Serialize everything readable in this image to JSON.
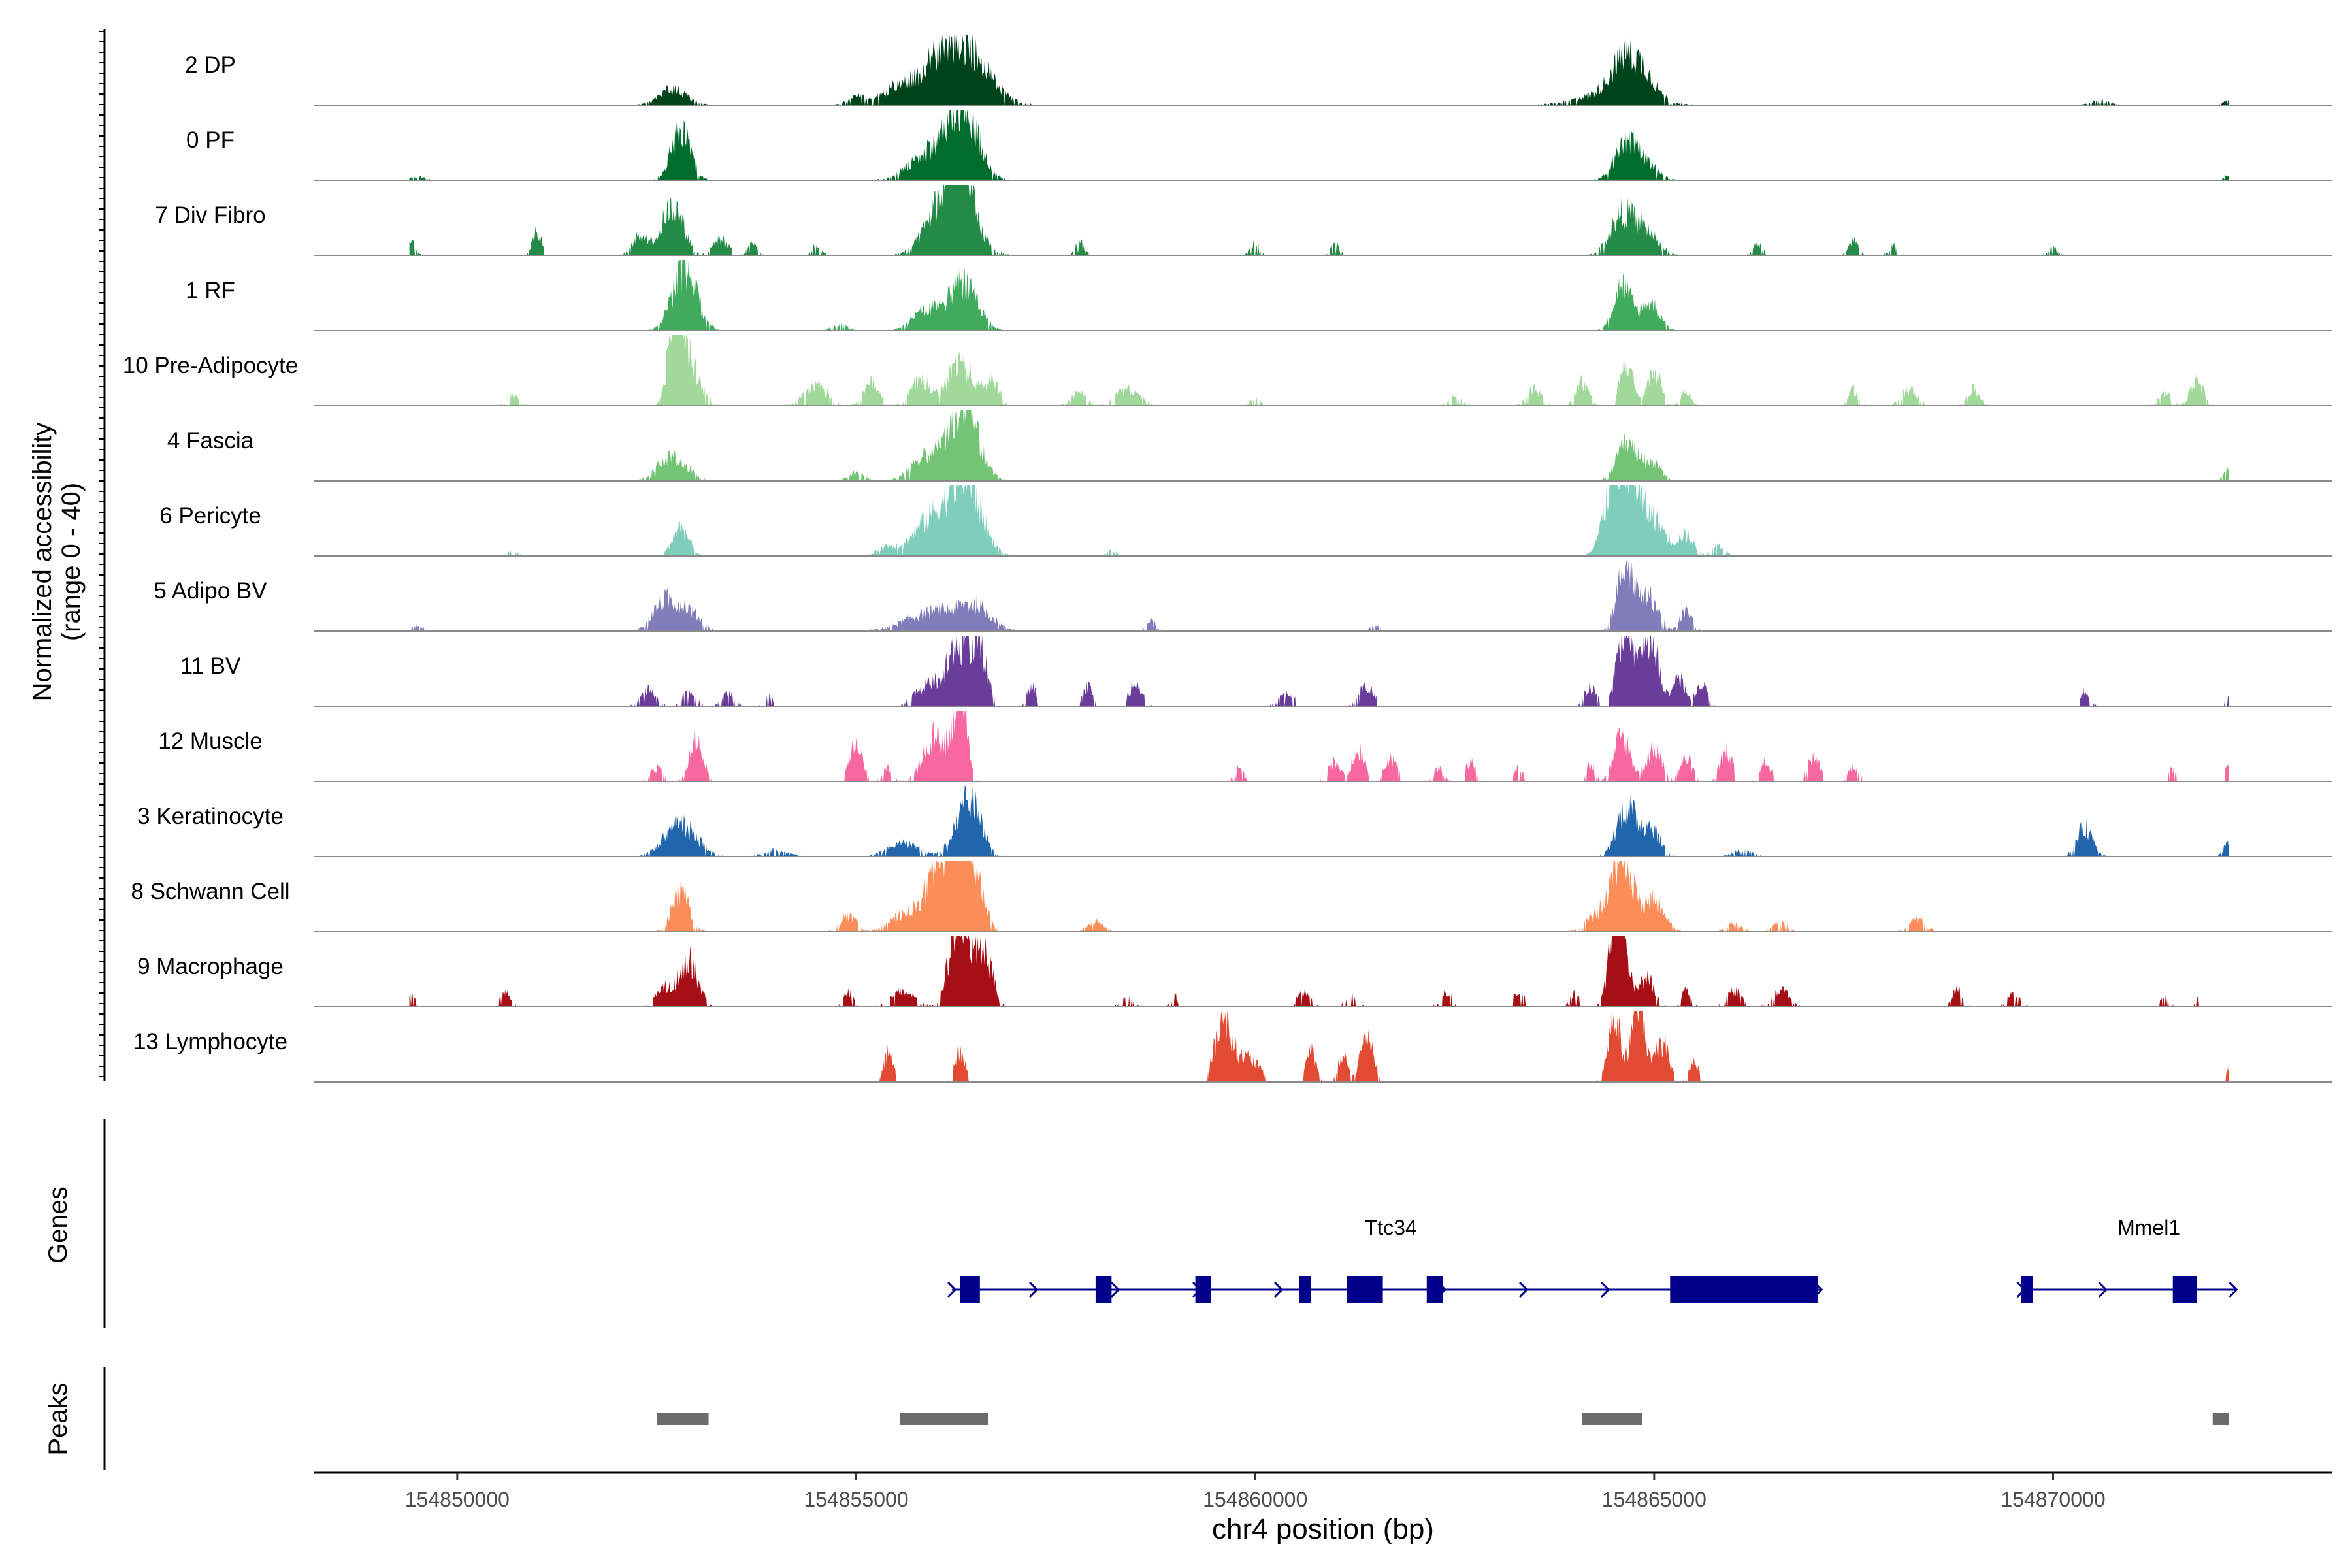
{
  "chart_data": {
    "type": "area",
    "title": "",
    "ylabel_line1": "Normalized accessibility",
    "ylabel_line2": "(range 0 - 40)",
    "y_range": [
      0,
      40
    ],
    "xlabel": "chr4 position (bp)",
    "xlim": [
      154848200,
      154873500
    ],
    "x_ticks": [
      154850000,
      154855000,
      154860000,
      154865000,
      154870000
    ],
    "x_tick_labels": [
      "154850000",
      "154855000",
      "154860000",
      "154865000",
      "154870000"
    ],
    "track_labels": {
      "genes": "Genes",
      "peaks": "Peaks"
    },
    "tracks": [
      {
        "name": "2 DP",
        "color": "#00441b",
        "sparse": 0.3,
        "peaks": [
          [
            154852700,
            10,
            180
          ],
          [
            154855000,
            5,
            120
          ],
          [
            154856300,
            30,
            300
          ],
          [
            154856100,
            14,
            400
          ],
          [
            154855500,
            7,
            200
          ],
          [
            154864650,
            23,
            170
          ],
          [
            154864500,
            8,
            400
          ],
          [
            154864900,
            10,
            150
          ],
          [
            154870600,
            3,
            120
          ],
          [
            154872200,
            3,
            60
          ]
        ]
      },
      {
        "name": "0 PF",
        "color": "#006d2c",
        "sparse": 0.3,
        "peaks": [
          [
            154852800,
            32,
            120
          ],
          [
            154856350,
            38,
            180
          ],
          [
            154856100,
            15,
            300
          ],
          [
            154855800,
            6,
            200
          ],
          [
            154864650,
            22,
            140
          ],
          [
            154864900,
            9,
            150
          ],
          [
            154849500,
            2,
            100
          ],
          [
            154872200,
            3,
            60
          ]
        ]
      },
      {
        "name": "7 Div Fibro",
        "color": "#238b45",
        "sparse": 0.5,
        "peaks": [
          [
            154856300,
            90,
            80
          ],
          [
            154856200,
            45,
            250
          ],
          [
            154852700,
            30,
            140
          ],
          [
            154852300,
            12,
            100
          ],
          [
            154853300,
            10,
            100
          ],
          [
            154849400,
            10,
            60
          ],
          [
            154851000,
            14,
            60
          ],
          [
            154853700,
            8,
            60
          ],
          [
            154854500,
            6,
            60
          ],
          [
            154857800,
            8,
            60
          ],
          [
            154860000,
            8,
            60
          ],
          [
            154861000,
            7,
            60
          ],
          [
            154864600,
            25,
            150
          ],
          [
            154864900,
            14,
            150
          ],
          [
            154866300,
            8,
            60
          ],
          [
            154867500,
            10,
            60
          ],
          [
            154868000,
            6,
            60
          ],
          [
            154870000,
            5,
            60
          ]
        ]
      },
      {
        "name": "1 RF",
        "color": "#41ab5d",
        "sparse": 0.3,
        "peaks": [
          [
            154852850,
            38,
            150
          ],
          [
            154856350,
            30,
            170
          ],
          [
            154855900,
            14,
            180
          ],
          [
            154854800,
            4,
            100
          ],
          [
            154864600,
            28,
            110
          ],
          [
            154864950,
            17,
            120
          ]
        ]
      },
      {
        "name": "10 Pre-Adipocyte",
        "color": "#a1d99b",
        "sparse": 0.6,
        "peaks": [
          [
            154852750,
            68,
            90
          ],
          [
            154852950,
            20,
            120
          ],
          [
            154850700,
            6,
            80
          ],
          [
            154854500,
            12,
            150
          ],
          [
            154855200,
            14,
            100
          ],
          [
            154855800,
            16,
            120
          ],
          [
            154856300,
            28,
            150
          ],
          [
            154856700,
            15,
            100
          ],
          [
            154857800,
            8,
            100
          ],
          [
            154858400,
            10,
            150
          ],
          [
            154860000,
            5,
            60
          ],
          [
            154862500,
            5,
            100
          ],
          [
            154863500,
            10,
            100
          ],
          [
            154864100,
            15,
            80
          ],
          [
            154864650,
            28,
            80
          ],
          [
            154865000,
            22,
            80
          ],
          [
            154865400,
            10,
            60
          ],
          [
            154867500,
            10,
            60
          ],
          [
            154868200,
            10,
            100
          ],
          [
            154869000,
            10,
            80
          ],
          [
            154871400,
            8,
            80
          ],
          [
            154871800,
            17,
            80
          ]
        ]
      },
      {
        "name": "4 Fascia",
        "color": "#74c476",
        "sparse": 0.3,
        "peaks": [
          [
            154852700,
            15,
            180
          ],
          [
            154856350,
            45,
            180
          ],
          [
            154855900,
            15,
            200
          ],
          [
            154855000,
            5,
            100
          ],
          [
            154864650,
            22,
            120
          ],
          [
            154864950,
            12,
            120
          ],
          [
            154872200,
            8,
            60
          ]
        ]
      },
      {
        "name": "6 Pericyte",
        "color": "#7fcdbb",
        "sparse": 0.4,
        "peaks": [
          [
            154852800,
            18,
            100
          ],
          [
            154856350,
            50,
            200
          ],
          [
            154855900,
            20,
            200
          ],
          [
            154855400,
            6,
            120
          ],
          [
            154864650,
            58,
            140
          ],
          [
            154864450,
            25,
            120
          ],
          [
            154865000,
            22,
            150
          ],
          [
            154865400,
            12,
            100
          ],
          [
            154865800,
            7,
            80
          ],
          [
            154850700,
            4,
            60
          ],
          [
            154858200,
            4,
            60
          ]
        ]
      },
      {
        "name": "5 Adipo BV",
        "color": "#807dba",
        "sparse": 0.4,
        "peaks": [
          [
            154852600,
            18,
            150
          ],
          [
            154852900,
            12,
            150
          ],
          [
            154856000,
            12,
            350
          ],
          [
            154856500,
            12,
            200
          ],
          [
            154849500,
            3,
            80
          ],
          [
            154864650,
            42,
            110
          ],
          [
            154864950,
            20,
            110
          ],
          [
            154865400,
            12,
            80
          ],
          [
            154858700,
            7,
            60
          ],
          [
            154861500,
            5,
            60
          ]
        ]
      },
      {
        "name": "11 BV",
        "color": "#6a3d9a",
        "sparse": 0.8,
        "peaks": [
          [
            154852400,
            10,
            100
          ],
          [
            154852900,
            8,
            100
          ],
          [
            154853400,
            8,
            80
          ],
          [
            154853900,
            6,
            60
          ],
          [
            154855900,
            14,
            150
          ],
          [
            154856300,
            40,
            150
          ],
          [
            154856550,
            28,
            100
          ],
          [
            154857200,
            12,
            60
          ],
          [
            154857900,
            12,
            60
          ],
          [
            154858500,
            14,
            80
          ],
          [
            154860400,
            8,
            100
          ],
          [
            154861400,
            12,
            100
          ],
          [
            154864200,
            12,
            80
          ],
          [
            154864650,
            55,
            100
          ],
          [
            154864950,
            45,
            100
          ],
          [
            154865300,
            18,
            80
          ],
          [
            154865600,
            12,
            80
          ],
          [
            154870400,
            10,
            60
          ],
          [
            154872200,
            6,
            40
          ]
        ]
      },
      {
        "name": "12 Muscle",
        "color": "#f768a1",
        "sparse": 0.8,
        "peaks": [
          [
            154852500,
            8,
            80
          ],
          [
            154853000,
            28,
            80
          ],
          [
            154855000,
            22,
            80
          ],
          [
            154855400,
            8,
            60
          ],
          [
            154856300,
            55,
            80
          ],
          [
            154856000,
            28,
            150
          ],
          [
            154859800,
            8,
            60
          ],
          [
            154861000,
            12,
            80
          ],
          [
            154861300,
            20,
            80
          ],
          [
            154861700,
            14,
            80
          ],
          [
            154862300,
            8,
            60
          ],
          [
            154862700,
            12,
            60
          ],
          [
            154863300,
            8,
            60
          ],
          [
            154864200,
            10,
            60
          ],
          [
            154864600,
            28,
            100
          ],
          [
            154865000,
            20,
            100
          ],
          [
            154865400,
            14,
            80
          ],
          [
            154865900,
            18,
            80
          ],
          [
            154866400,
            12,
            80
          ],
          [
            154867000,
            14,
            80
          ],
          [
            154867500,
            10,
            60
          ],
          [
            154871500,
            8,
            60
          ],
          [
            154872200,
            10,
            40
          ]
        ]
      },
      {
        "name": "3 Keratinocyte",
        "color": "#2166ac",
        "sparse": 0.4,
        "peaks": [
          [
            154852800,
            20,
            200
          ],
          [
            154856400,
            38,
            150
          ],
          [
            154855600,
            8,
            200
          ],
          [
            154854000,
            4,
            150
          ],
          [
            154864650,
            30,
            120
          ],
          [
            154864950,
            18,
            120
          ],
          [
            154866100,
            4,
            120
          ],
          [
            154870400,
            18,
            100
          ],
          [
            154872200,
            8,
            60
          ]
        ]
      },
      {
        "name": "8 Schwann Cell",
        "color": "#fc8d59",
        "sparse": 0.4,
        "peaks": [
          [
            154852800,
            24,
            110
          ],
          [
            154856350,
            70,
            160
          ],
          [
            154856050,
            36,
            180
          ],
          [
            154855600,
            10,
            180
          ],
          [
            154854900,
            10,
            100
          ],
          [
            154858000,
            6,
            100
          ],
          [
            154864600,
            45,
            130
          ],
          [
            154864300,
            10,
            150
          ],
          [
            154865000,
            20,
            130
          ],
          [
            154866000,
            5,
            100
          ],
          [
            154866600,
            6,
            100
          ],
          [
            154868300,
            8,
            100
          ]
        ]
      },
      {
        "name": "9 Macrophage",
        "color": "#a50f15",
        "sparse": 0.8,
        "peaks": [
          [
            154852900,
            28,
            120
          ],
          [
            154852600,
            12,
            100
          ],
          [
            154849400,
            8,
            60
          ],
          [
            154850600,
            8,
            80
          ],
          [
            154854900,
            10,
            60
          ],
          [
            154855600,
            10,
            150
          ],
          [
            154856300,
            60,
            120
          ],
          [
            154856600,
            36,
            100
          ],
          [
            154858400,
            6,
            80
          ],
          [
            154859000,
            6,
            60
          ],
          [
            154860600,
            8,
            100
          ],
          [
            154861200,
            6,
            80
          ],
          [
            154862400,
            8,
            80
          ],
          [
            154863300,
            8,
            80
          ],
          [
            154864000,
            8,
            60
          ],
          [
            154864550,
            85,
            90
          ],
          [
            154864900,
            18,
            100
          ],
          [
            154865400,
            10,
            60
          ],
          [
            154866000,
            10,
            100
          ],
          [
            154866600,
            10,
            100
          ],
          [
            154868800,
            10,
            60
          ],
          [
            154869500,
            8,
            80
          ],
          [
            154871400,
            6,
            60
          ],
          [
            154871800,
            5,
            40
          ]
        ]
      },
      {
        "name": "13 Lymphocyte",
        "color": "#e34a33",
        "sparse": 0.9,
        "peaks": [
          [
            154855400,
            18,
            60
          ],
          [
            154856300,
            20,
            60
          ],
          [
            154859600,
            40,
            100
          ],
          [
            154859900,
            15,
            150
          ],
          [
            154860700,
            20,
            60
          ],
          [
            154861100,
            15,
            60
          ],
          [
            154861400,
            30,
            80
          ],
          [
            154864500,
            40,
            80
          ],
          [
            154864800,
            60,
            80
          ],
          [
            154865100,
            25,
            80
          ],
          [
            154865500,
            12,
            60
          ],
          [
            154872200,
            8,
            40
          ]
        ]
      }
    ],
    "genes": [
      {
        "name": "Ttc34",
        "start": 154856200,
        "end": 154867100,
        "strand": "+",
        "exons": [
          [
            154856300,
            154856550
          ],
          [
            154858000,
            154858200
          ],
          [
            154859250,
            154859450
          ],
          [
            154860550,
            154860700
          ],
          [
            154861150,
            154861600
          ],
          [
            154862150,
            154862350
          ],
          [
            154865200,
            154867050
          ]
        ]
      },
      {
        "name": "Mmel1",
        "start": 154869600,
        "end": 154872300,
        "strand": "+",
        "exons": [
          [
            154869600,
            154869750
          ],
          [
            154871500,
            154871800
          ]
        ]
      }
    ],
    "peak_regions": [
      [
        154852500,
        154853150
      ],
      [
        154855550,
        154856650
      ],
      [
        154864100,
        154864850
      ],
      [
        154872000,
        154872200
      ]
    ]
  }
}
